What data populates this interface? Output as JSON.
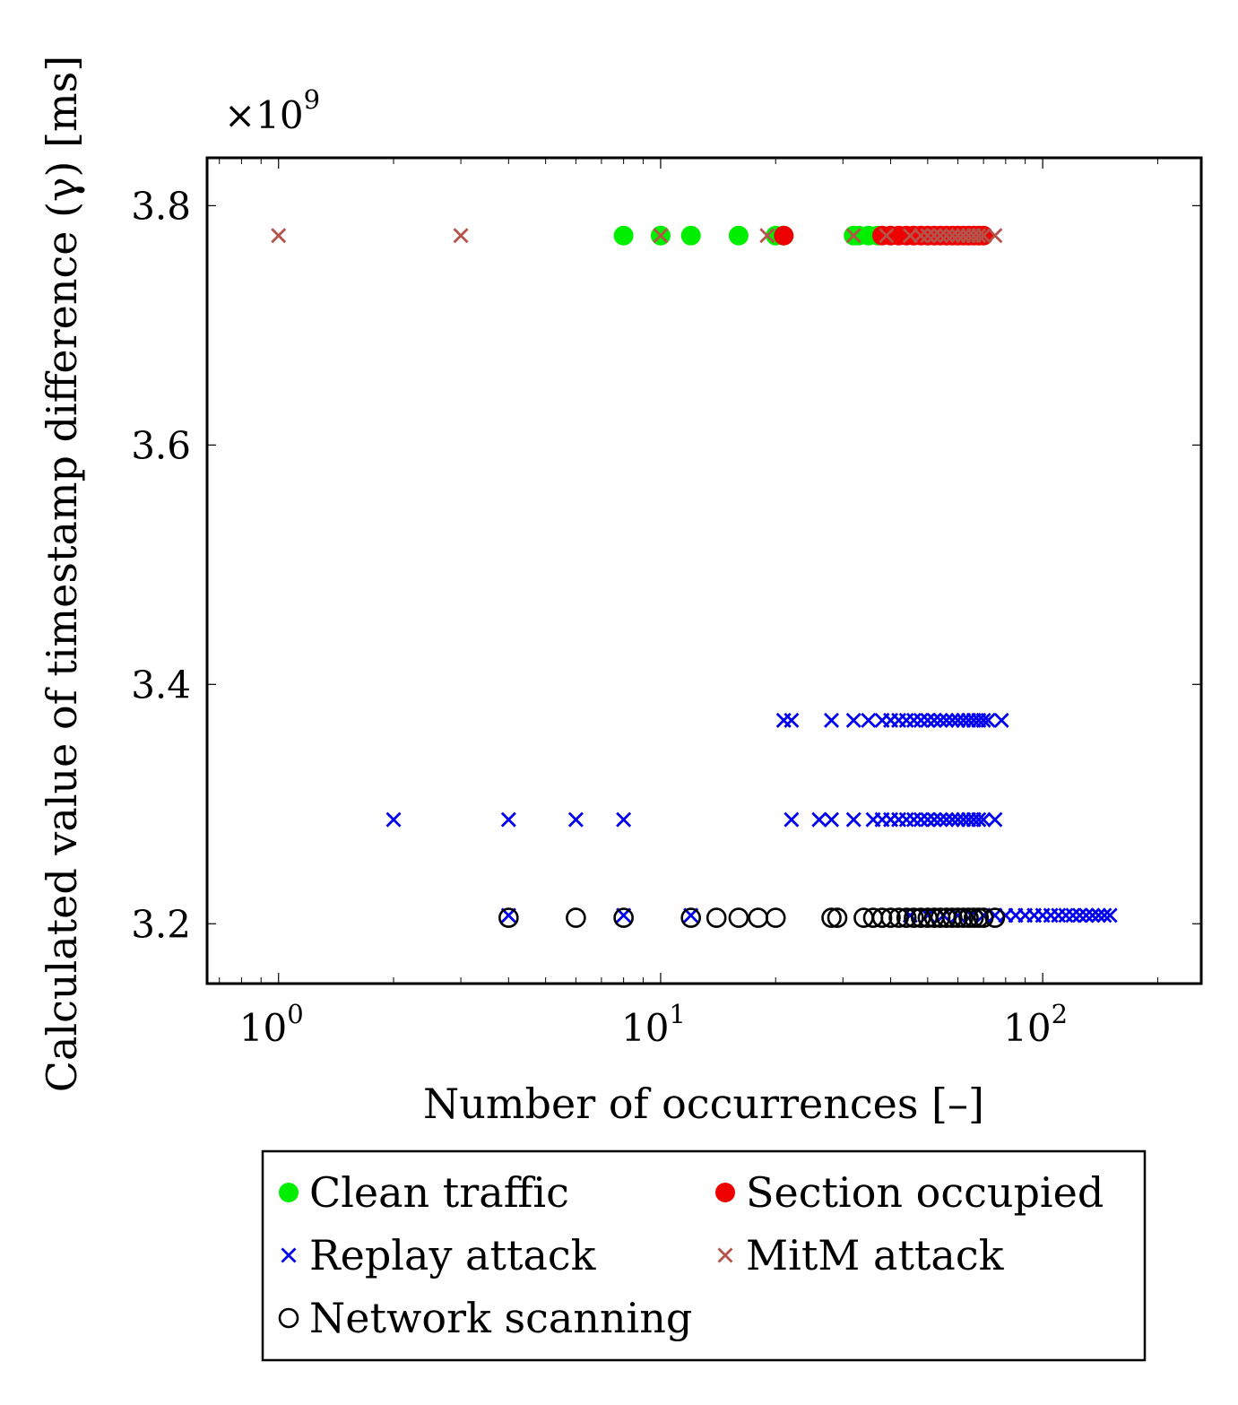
{
  "chart_data": {
    "type": "scatter",
    "title": "",
    "xlabel": "Number of occurrences [–]",
    "ylabel": "Calculated value of timestamp difference (γ) [ms]",
    "y_multiplier": "×10",
    "y_multiplier_exponent": "9",
    "xscale": "log",
    "xlim": [
      0.65,
      260
    ],
    "ylim": [
      3.15,
      3.84
    ],
    "x_ticks": [
      1,
      10,
      100
    ],
    "x_tick_labels": [
      {
        "base": "10",
        "exp": "0"
      },
      {
        "base": "10",
        "exp": "1"
      },
      {
        "base": "10",
        "exp": "2"
      }
    ],
    "y_ticks": [
      3.2,
      3.4,
      3.6,
      3.8
    ],
    "y_tick_labels": [
      "3.2",
      "3.4",
      "3.6",
      "3.8"
    ],
    "grid": false,
    "legend_position": "bottom-center",
    "series": [
      {
        "name": "Clean traffic",
        "marker": "filled-circle",
        "color": "#00ee00",
        "points": [
          [
            8,
            3.775
          ],
          [
            10,
            3.775
          ],
          [
            12,
            3.775
          ],
          [
            16,
            3.775
          ],
          [
            20,
            3.775
          ],
          [
            21,
            3.775
          ],
          [
            32,
            3.775
          ],
          [
            33,
            3.775
          ],
          [
            35,
            3.775
          ],
          [
            37,
            3.775
          ]
        ]
      },
      {
        "name": "Section occupied",
        "marker": "filled-circle",
        "color": "#ee0000",
        "points": [
          [
            21,
            3.775
          ],
          [
            38,
            3.775
          ],
          [
            40,
            3.775
          ],
          [
            42,
            3.775
          ],
          [
            44,
            3.775
          ],
          [
            46,
            3.775
          ],
          [
            48,
            3.775
          ],
          [
            50,
            3.775
          ],
          [
            52,
            3.775
          ],
          [
            54,
            3.775
          ],
          [
            56,
            3.775
          ],
          [
            58,
            3.775
          ],
          [
            60,
            3.775
          ],
          [
            62,
            3.775
          ],
          [
            64,
            3.775
          ],
          [
            66,
            3.775
          ],
          [
            68,
            3.775
          ],
          [
            70,
            3.775
          ]
        ]
      },
      {
        "name": "Replay attack",
        "marker": "cross",
        "color": "#0000ee",
        "points": [
          [
            2,
            3.287
          ],
          [
            4,
            3.287
          ],
          [
            6,
            3.287
          ],
          [
            8,
            3.287
          ],
          [
            22,
            3.287
          ],
          [
            26,
            3.287
          ],
          [
            28,
            3.287
          ],
          [
            32,
            3.287
          ],
          [
            36,
            3.287
          ],
          [
            38,
            3.287
          ],
          [
            40,
            3.287
          ],
          [
            42,
            3.287
          ],
          [
            44,
            3.287
          ],
          [
            46,
            3.287
          ],
          [
            48,
            3.287
          ],
          [
            50,
            3.287
          ],
          [
            52,
            3.287
          ],
          [
            54,
            3.287
          ],
          [
            56,
            3.287
          ],
          [
            58,
            3.287
          ],
          [
            60,
            3.287
          ],
          [
            62,
            3.287
          ],
          [
            64,
            3.287
          ],
          [
            66,
            3.287
          ],
          [
            68,
            3.287
          ],
          [
            70,
            3.287
          ],
          [
            75,
            3.287
          ],
          [
            21,
            3.37
          ],
          [
            22,
            3.37
          ],
          [
            28,
            3.37
          ],
          [
            32,
            3.37
          ],
          [
            35,
            3.37
          ],
          [
            38,
            3.37
          ],
          [
            40,
            3.37
          ],
          [
            42,
            3.37
          ],
          [
            44,
            3.37
          ],
          [
            46,
            3.37
          ],
          [
            48,
            3.37
          ],
          [
            50,
            3.37
          ],
          [
            52,
            3.37
          ],
          [
            54,
            3.37
          ],
          [
            56,
            3.37
          ],
          [
            58,
            3.37
          ],
          [
            60,
            3.37
          ],
          [
            62,
            3.37
          ],
          [
            64,
            3.37
          ],
          [
            66,
            3.37
          ],
          [
            68,
            3.37
          ],
          [
            70,
            3.37
          ],
          [
            72,
            3.37
          ],
          [
            78,
            3.37
          ],
          [
            4,
            3.207
          ],
          [
            8,
            3.207
          ],
          [
            12,
            3.207
          ],
          [
            45,
            3.207
          ],
          [
            50,
            3.207
          ],
          [
            55,
            3.207
          ],
          [
            60,
            3.207
          ],
          [
            65,
            3.207
          ],
          [
            70,
            3.207
          ],
          [
            75,
            3.207
          ],
          [
            80,
            3.207
          ],
          [
            85,
            3.207
          ],
          [
            90,
            3.207
          ],
          [
            95,
            3.207
          ],
          [
            100,
            3.207
          ],
          [
            105,
            3.207
          ],
          [
            110,
            3.207
          ],
          [
            115,
            3.207
          ],
          [
            120,
            3.207
          ],
          [
            125,
            3.207
          ],
          [
            130,
            3.207
          ],
          [
            135,
            3.207
          ],
          [
            140,
            3.207
          ],
          [
            145,
            3.207
          ],
          [
            150,
            3.207
          ]
        ]
      },
      {
        "name": "MitM attack",
        "marker": "cross",
        "color": "#b5534a",
        "points": [
          [
            1,
            3.775
          ],
          [
            3,
            3.775
          ],
          [
            10,
            3.775
          ],
          [
            19,
            3.775
          ],
          [
            32,
            3.775
          ],
          [
            39,
            3.775
          ],
          [
            45,
            3.775
          ],
          [
            48,
            3.775
          ],
          [
            50,
            3.775
          ],
          [
            52,
            3.775
          ],
          [
            54,
            3.775
          ],
          [
            56,
            3.775
          ],
          [
            58,
            3.775
          ],
          [
            60,
            3.775
          ],
          [
            62,
            3.775
          ],
          [
            64,
            3.775
          ],
          [
            66,
            3.775
          ],
          [
            68,
            3.775
          ],
          [
            70,
            3.775
          ],
          [
            75,
            3.775
          ]
        ]
      },
      {
        "name": "Network scanning",
        "marker": "open-circle",
        "color": "#000000",
        "points": [
          [
            4,
            3.205
          ],
          [
            6,
            3.205
          ],
          [
            8,
            3.205
          ],
          [
            12,
            3.205
          ],
          [
            14,
            3.205
          ],
          [
            16,
            3.205
          ],
          [
            18,
            3.205
          ],
          [
            20,
            3.205
          ],
          [
            28,
            3.205
          ],
          [
            29,
            3.205
          ],
          [
            34,
            3.205
          ],
          [
            36,
            3.205
          ],
          [
            38,
            3.205
          ],
          [
            40,
            3.205
          ],
          [
            42,
            3.205
          ],
          [
            44,
            3.205
          ],
          [
            46,
            3.205
          ],
          [
            48,
            3.205
          ],
          [
            50,
            3.205
          ],
          [
            52,
            3.205
          ],
          [
            54,
            3.205
          ],
          [
            56,
            3.205
          ],
          [
            58,
            3.205
          ],
          [
            60,
            3.205
          ],
          [
            62,
            3.205
          ],
          [
            64,
            3.205
          ],
          [
            66,
            3.205
          ],
          [
            68,
            3.205
          ],
          [
            70,
            3.205
          ],
          [
            75,
            3.205
          ]
        ]
      }
    ]
  }
}
